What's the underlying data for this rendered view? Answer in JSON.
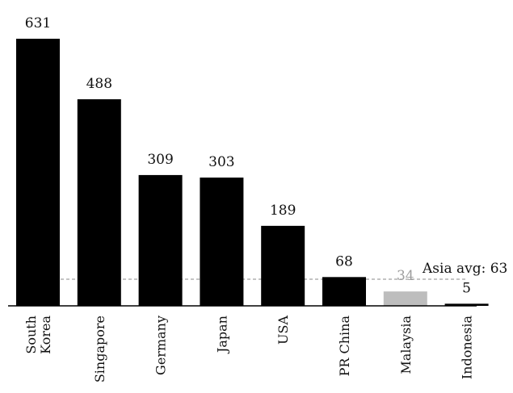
{
  "chart_data": {
    "type": "bar",
    "categories": [
      [
        "South",
        "Korea"
      ],
      [
        "Singapore"
      ],
      [
        "Germany"
      ],
      [
        "Japan"
      ],
      [
        "USA"
      ],
      [
        "PR China"
      ],
      [
        "Malaysia"
      ],
      [
        "Indonesia"
      ]
    ],
    "values": [
      631,
      488,
      309,
      303,
      189,
      68,
      34,
      5
    ],
    "value_labels": [
      "631",
      "488",
      "309",
      "303",
      "189",
      "68",
      "34",
      "5"
    ],
    "bar_colors": [
      "#000000",
      "#000000",
      "#000000",
      "#000000",
      "#000000",
      "#000000",
      "#bdbdbd",
      "#000000"
    ],
    "label_colors": [
      "#111111",
      "#111111",
      "#111111",
      "#111111",
      "#111111",
      "#111111",
      "#9e9e9e",
      "#111111"
    ],
    "reference_line": {
      "value": 63,
      "label": "Asia avg: 63",
      "color": "#888888",
      "style": "dashed"
    },
    "ylim": [
      0,
      631
    ],
    "xlabel": "",
    "ylabel": "",
    "title": "",
    "grid": false,
    "legend": "none"
  }
}
